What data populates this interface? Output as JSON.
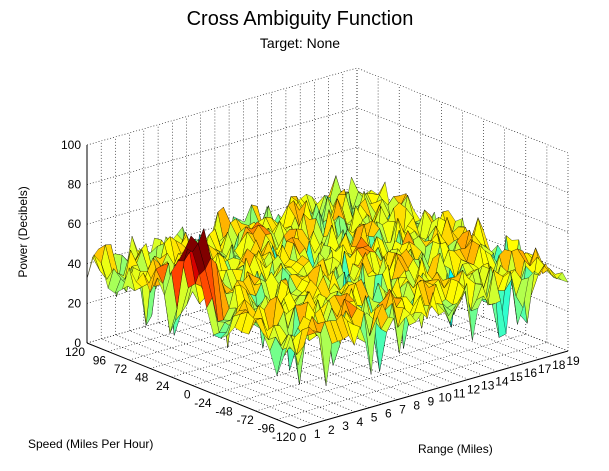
{
  "chart_data": {
    "type": "surface3d",
    "title": "Cross Ambiguity Function",
    "subtitle": "Target: None",
    "xlabel": "Range (Miles)",
    "ylabel": "Speed (Miles Per Hour)",
    "zlabel": "Power (Decibels)",
    "x_ticks": [
      "0",
      "1",
      "2",
      "3",
      "4",
      "5",
      "6",
      "7",
      "8",
      "9",
      "10",
      "11",
      "12",
      "13",
      "14",
      "15",
      "16",
      "17",
      "18",
      "19"
    ],
    "y_ticks": [
      "120",
      "96",
      "72",
      "48",
      "24",
      "0",
      "-24",
      "-48",
      "-72",
      "-96",
      "-120"
    ],
    "z_ticks": [
      "0",
      "20",
      "40",
      "60",
      "80",
      "100"
    ],
    "xlim": [
      0,
      19
    ],
    "ylim": [
      -120,
      120
    ],
    "zlim": [
      0,
      100
    ],
    "grid": true,
    "colormap": "jet",
    "surface_summary": {
      "noise_floor_db": 40,
      "noise_variation_db": 12,
      "peak": {
        "range": 0.5,
        "speed": 12,
        "power_db": 60
      }
    }
  }
}
